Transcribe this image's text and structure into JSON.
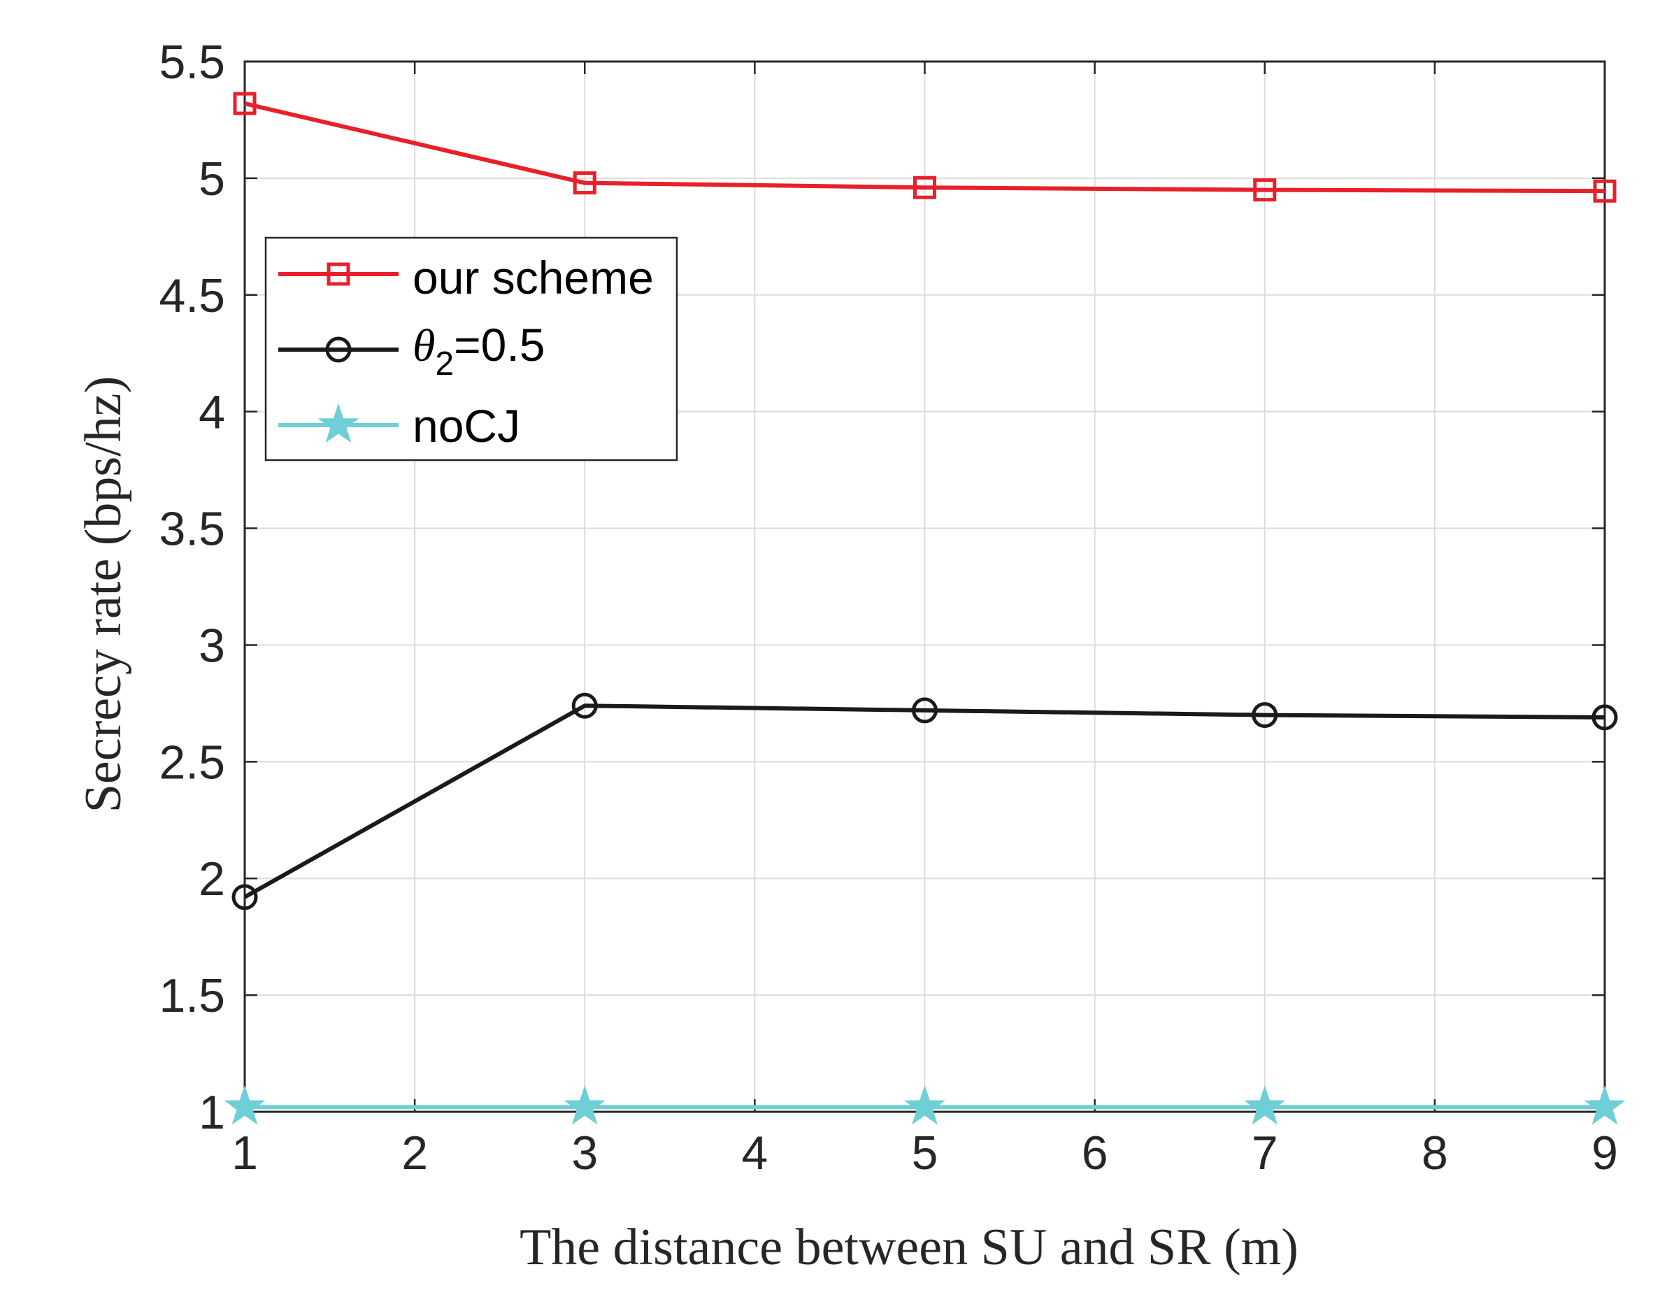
{
  "chart_data": {
    "type": "line",
    "title": "",
    "xlabel": "The distance between SU and SR (m)",
    "ylabel": "Secrecy rate (bps/hz)",
    "xlim": [
      1,
      9
    ],
    "ylim": [
      1,
      5.5
    ],
    "xticks": [
      "1",
      "2",
      "3",
      "4",
      "5",
      "6",
      "7",
      "8",
      "9"
    ],
    "yticks": [
      "1",
      "1.5",
      "2",
      "2.5",
      "3",
      "3.5",
      "4",
      "4.5",
      "5",
      "5.5"
    ],
    "grid": true,
    "legend_position": "upper-left",
    "x": [
      1,
      3,
      5,
      7,
      9
    ],
    "series": [
      {
        "name": "our scheme",
        "color": "#e8202a",
        "marker": "square",
        "values": [
          5.32,
          4.98,
          4.96,
          4.95,
          4.945
        ]
      },
      {
        "name": "θ2=0.5",
        "color": "#1a1a1a",
        "marker": "circle",
        "values": [
          1.92,
          2.74,
          2.72,
          2.7,
          2.69
        ]
      },
      {
        "name": "noCJ",
        "color": "#6ecfd6",
        "marker": "star",
        "values": [
          1.02,
          1.02,
          1.02,
          1.02,
          1.02
        ]
      }
    ],
    "legend_labels": {
      "series0": "our scheme",
      "series1_symbol": "θ",
      "series1_sub": "2",
      "series1_rest": "=0.5",
      "series2": "noCJ"
    }
  }
}
